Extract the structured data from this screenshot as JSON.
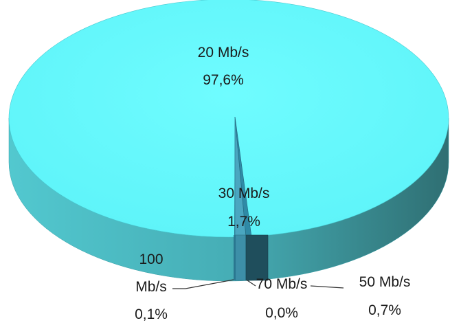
{
  "chart_data": {
    "type": "pie",
    "style": "3d",
    "slices": [
      {
        "category": "20 Mb/s",
        "value": 97.6,
        "label": "97,6%",
        "color": "#5cf3f8"
      },
      {
        "category": "30 Mb/s",
        "value": 1.7,
        "label": "1,7%",
        "color": "#4aa6c0"
      },
      {
        "category": "50 Mb/s",
        "value": 0.7,
        "label": "0,7%",
        "color": "#2f8aa6"
      },
      {
        "category": "70 Mb/s",
        "value": 0.0,
        "label": "0,0%",
        "color": "#1f5f73"
      },
      {
        "category": "100 Mb/s",
        "value": 0.1,
        "label": "0,1%",
        "color": "#2a7790"
      }
    ],
    "legend": "none"
  }
}
